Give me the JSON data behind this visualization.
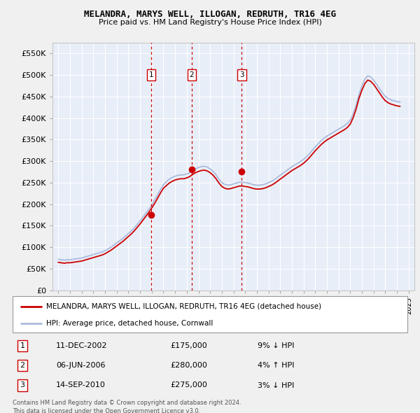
{
  "title": "MELANDRA, MARYS WELL, ILLOGAN, REDRUTH, TR16 4EG",
  "subtitle": "Price paid vs. HM Land Registry's House Price Index (HPI)",
  "ylim": [
    0,
    575000
  ],
  "yticks": [
    0,
    50000,
    100000,
    150000,
    200000,
    250000,
    300000,
    350000,
    400000,
    450000,
    500000,
    550000
  ],
  "ytick_labels": [
    "£0",
    "£50K",
    "£100K",
    "£150K",
    "£200K",
    "£250K",
    "£300K",
    "£350K",
    "£400K",
    "£450K",
    "£500K",
    "£550K"
  ],
  "fig_bg_color": "#f0f0f0",
  "plot_bg_color": "#e8eef8",
  "red_color": "#cc0000",
  "blue_color": "#aabbdd",
  "sale_dates": [
    2002.94,
    2006.43,
    2010.71
  ],
  "sale_prices": [
    175000,
    280000,
    275000
  ],
  "sale_labels": [
    "1",
    "2",
    "3"
  ],
  "legend_label_red": "MELANDRA, MARYS WELL, ILLOGAN, REDRUTH, TR16 4EG (detached house)",
  "legend_label_blue": "HPI: Average price, detached house, Cornwall",
  "table_entries": [
    {
      "num": "1",
      "date": "11-DEC-2002",
      "price": "£175,000",
      "hpi": "9% ↓ HPI"
    },
    {
      "num": "2",
      "date": "06-JUN-2006",
      "price": "£280,000",
      "hpi": "4% ↑ HPI"
    },
    {
      "num": "3",
      "date": "14-SEP-2010",
      "price": "£275,000",
      "hpi": "3% ↓ HPI"
    }
  ],
  "footer": "Contains HM Land Registry data © Crown copyright and database right 2024.\nThis data is licensed under the Open Government Licence v3.0.",
  "hpi_x": [
    1995.0,
    1995.25,
    1995.5,
    1995.75,
    1996.0,
    1996.25,
    1996.5,
    1996.75,
    1997.0,
    1997.25,
    1997.5,
    1997.75,
    1998.0,
    1998.25,
    1998.5,
    1998.75,
    1999.0,
    1999.25,
    1999.5,
    1999.75,
    2000.0,
    2000.25,
    2000.5,
    2000.75,
    2001.0,
    2001.25,
    2001.5,
    2001.75,
    2002.0,
    2002.25,
    2002.5,
    2002.75,
    2003.0,
    2003.25,
    2003.5,
    2003.75,
    2004.0,
    2004.25,
    2004.5,
    2004.75,
    2005.0,
    2005.25,
    2005.5,
    2005.75,
    2006.0,
    2006.25,
    2006.5,
    2006.75,
    2007.0,
    2007.25,
    2007.5,
    2007.75,
    2008.0,
    2008.25,
    2008.5,
    2008.75,
    2009.0,
    2009.25,
    2009.5,
    2009.75,
    2010.0,
    2010.25,
    2010.5,
    2010.75,
    2011.0,
    2011.25,
    2011.5,
    2011.75,
    2012.0,
    2012.25,
    2012.5,
    2012.75,
    2013.0,
    2013.25,
    2013.5,
    2013.75,
    2014.0,
    2014.25,
    2014.5,
    2014.75,
    2015.0,
    2015.25,
    2015.5,
    2015.75,
    2016.0,
    2016.25,
    2016.5,
    2016.75,
    2017.0,
    2017.25,
    2017.5,
    2017.75,
    2018.0,
    2018.25,
    2018.5,
    2018.75,
    2019.0,
    2019.25,
    2019.5,
    2019.75,
    2020.0,
    2020.25,
    2020.5,
    2020.75,
    2021.0,
    2021.25,
    2021.5,
    2021.75,
    2022.0,
    2022.25,
    2022.5,
    2022.75,
    2023.0,
    2023.25,
    2023.5,
    2023.75,
    2024.0,
    2024.25
  ],
  "hpi_y": [
    72000,
    71000,
    70000,
    71000,
    71000,
    72000,
    73000,
    74000,
    75000,
    77000,
    79000,
    81000,
    83000,
    85000,
    87000,
    89000,
    92000,
    96000,
    100000,
    105000,
    110000,
    115000,
    120000,
    126000,
    132000,
    138000,
    145000,
    153000,
    161000,
    170000,
    179000,
    188000,
    198000,
    210000,
    222000,
    234000,
    245000,
    252000,
    258000,
    262000,
    265000,
    267000,
    268000,
    268000,
    270000,
    273000,
    278000,
    282000,
    285000,
    287000,
    288000,
    286000,
    282000,
    276000,
    268000,
    258000,
    250000,
    246000,
    244000,
    245000,
    247000,
    249000,
    251000,
    251000,
    250000,
    249000,
    247000,
    245000,
    244000,
    244000,
    245000,
    247000,
    250000,
    253000,
    257000,
    262000,
    267000,
    272000,
    277000,
    282000,
    287000,
    291000,
    295000,
    299000,
    304000,
    310000,
    317000,
    325000,
    333000,
    340000,
    347000,
    353000,
    358000,
    362000,
    366000,
    370000,
    374000,
    378000,
    382000,
    387000,
    395000,
    410000,
    430000,
    455000,
    475000,
    490000,
    498000,
    495000,
    488000,
    478000,
    468000,
    458000,
    450000,
    445000,
    442000,
    440000,
    438000,
    437000
  ],
  "red_y": [
    65000,
    64000,
    63000,
    64000,
    64000,
    65000,
    66000,
    67000,
    68000,
    70000,
    72000,
    74000,
    76000,
    78000,
    80000,
    82000,
    85000,
    89000,
    93000,
    98000,
    103000,
    108000,
    113000,
    119000,
    125000,
    131000,
    138000,
    146000,
    154000,
    163000,
    172000,
    181000,
    191000,
    202000,
    214000,
    226000,
    237000,
    243000,
    249000,
    253000,
    256000,
    258000,
    259000,
    259000,
    261000,
    264000,
    269000,
    273000,
    276000,
    278000,
    279000,
    277000,
    273000,
    267000,
    259000,
    249000,
    241000,
    237000,
    235000,
    236000,
    238000,
    240000,
    242000,
    242000,
    241000,
    240000,
    238000,
    236000,
    235000,
    235000,
    236000,
    238000,
    241000,
    244000,
    248000,
    253000,
    258000,
    263000,
    268000,
    273000,
    278000,
    282000,
    286000,
    290000,
    295000,
    301000,
    308000,
    316000,
    324000,
    331000,
    338000,
    344000,
    349000,
    353000,
    357000,
    361000,
    365000,
    369000,
    373000,
    378000,
    386000,
    401000,
    421000,
    446000,
    465000,
    480000,
    488000,
    485000,
    478000,
    468000,
    458000,
    448000,
    440000,
    435000,
    432000,
    430000,
    428000,
    427000
  ],
  "xlim": [
    1994.5,
    2025.5
  ],
  "xticks": [
    1995,
    1996,
    1997,
    1998,
    1999,
    2000,
    2001,
    2002,
    2003,
    2004,
    2005,
    2006,
    2007,
    2008,
    2009,
    2010,
    2011,
    2012,
    2013,
    2014,
    2015,
    2016,
    2017,
    2018,
    2019,
    2020,
    2021,
    2022,
    2023,
    2024,
    2025
  ]
}
